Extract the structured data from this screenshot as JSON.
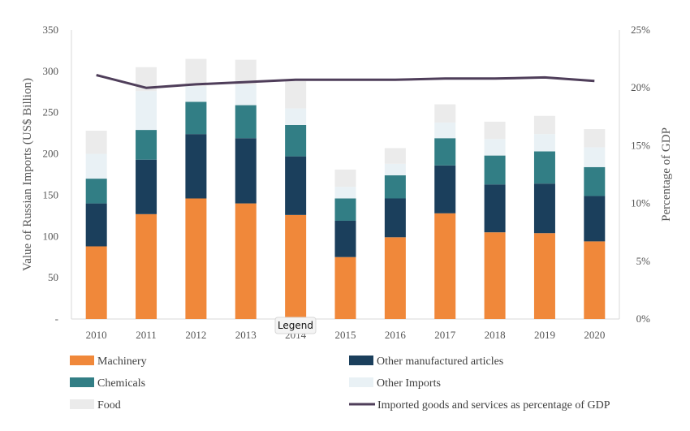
{
  "chart_data": {
    "type": "bar",
    "subtype": "stacked-bar-with-line",
    "categories": [
      "2010",
      "2011",
      "2012",
      "2013",
      "2014",
      "2015",
      "2016",
      "2017",
      "2018",
      "2019",
      "2020"
    ],
    "series": [
      {
        "name": "Machinery",
        "color": "#f0883a",
        "values": [
          88,
          127,
          146,
          140,
          126,
          75,
          99,
          128,
          105,
          104,
          94
        ]
      },
      {
        "name": "Other manufactured articles",
        "color": "#1b3f5c",
        "values": [
          52,
          66,
          78,
          79,
          71,
          44,
          47,
          58,
          58,
          60,
          55
        ]
      },
      {
        "name": "Chemicals",
        "color": "#327e85",
        "values": [
          30,
          36,
          39,
          40,
          38,
          27,
          28,
          33,
          35,
          39,
          35
        ]
      },
      {
        "name": "Other Imports",
        "color": "#e9f1f5",
        "values": [
          30,
          47,
          19,
          25,
          20,
          14,
          14,
          19,
          20,
          21,
          24
        ]
      },
      {
        "name": "Food",
        "color": "#ebebeb",
        "values": [
          28,
          29,
          33,
          30,
          33,
          21,
          19,
          22,
          21,
          22,
          22
        ]
      }
    ],
    "line": {
      "name": "Imported goods and services as percentage of GDP",
      "color": "#4f3e5a",
      "values": [
        21.1,
        20.0,
        20.3,
        20.5,
        20.7,
        20.7,
        20.7,
        20.8,
        20.8,
        20.9,
        20.6
      ]
    },
    "ylabel": "Value of Russian Imports (US$ Billion)",
    "y2label": "Percentage of GDP",
    "ylim": [
      0,
      350
    ],
    "y2lim": [
      0,
      25
    ],
    "yticks": [
      "-",
      "50",
      "100",
      "150",
      "200",
      "250",
      "300",
      "350"
    ],
    "y2ticks": [
      "0%",
      "5%",
      "10%",
      "15%",
      "20%",
      "25%"
    ],
    "grid": false,
    "legend_position": "bottom",
    "legend_title": "Legend"
  }
}
